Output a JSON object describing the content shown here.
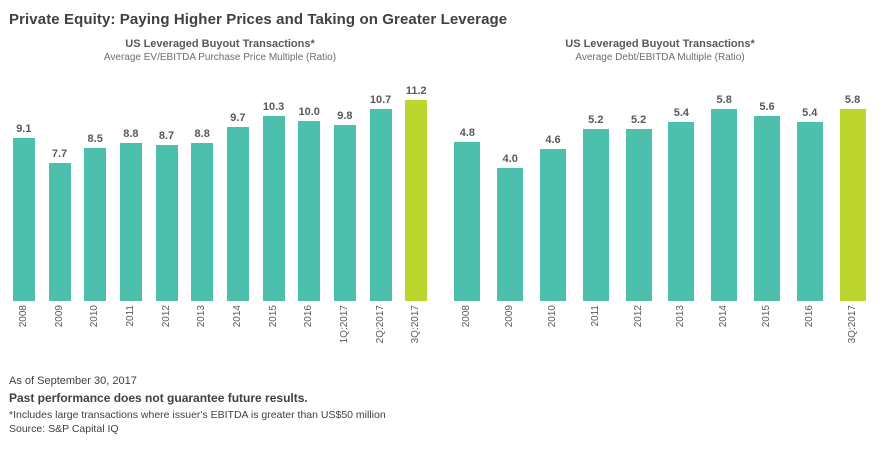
{
  "header": {
    "title": "Private Equity: Paying Higher Prices and Taking on Greater Leverage"
  },
  "colors": {
    "bar_teal": "#4DBFAD",
    "bar_highlight": "#BDD62F",
    "text_dark": "#414042",
    "text_gray": "#58595B"
  },
  "chart_data": [
    {
      "type": "bar",
      "title": "US Leveraged Buyout Transactions*",
      "subtitle": "Average EV/EBITDA Purchase Price Multiple (Ratio)",
      "categories": [
        "2008",
        "2009",
        "2010",
        "2011",
        "2012",
        "2013",
        "2014",
        "2015",
        "2016",
        "1Q:2017",
        "2Q:2017",
        "3Q:2017"
      ],
      "values": [
        9.1,
        7.7,
        8.5,
        8.8,
        8.7,
        8.8,
        9.7,
        10.3,
        10.0,
        9.8,
        10.7,
        11.2
      ],
      "highlight_index": 11,
      "ylim": [
        0,
        11.8
      ],
      "grid": false,
      "legend": "none"
    },
    {
      "type": "bar",
      "title": "US Leveraged Buyout Transactions*",
      "subtitle": "Average Debt/EBITDA Multiple (Ratio)",
      "categories": [
        "2008",
        "2009",
        "2010",
        "2011",
        "2012",
        "2013",
        "2014",
        "2015",
        "2016",
        "3Q:2017"
      ],
      "values": [
        4.8,
        4.0,
        4.6,
        5.2,
        5.2,
        5.4,
        5.8,
        5.6,
        5.4,
        5.8
      ],
      "highlight_index": 9,
      "ylim": [
        0,
        6.4
      ],
      "grid": false,
      "legend": "none"
    }
  ],
  "footer": {
    "as_of": "As of September 30, 2017",
    "disclaimer": "Past performance does not guarantee future results.",
    "footnote": "*Includes large transactions where issuer's EBITDA is greater than US$50 million",
    "source": "Source: S&P Capital IQ"
  }
}
